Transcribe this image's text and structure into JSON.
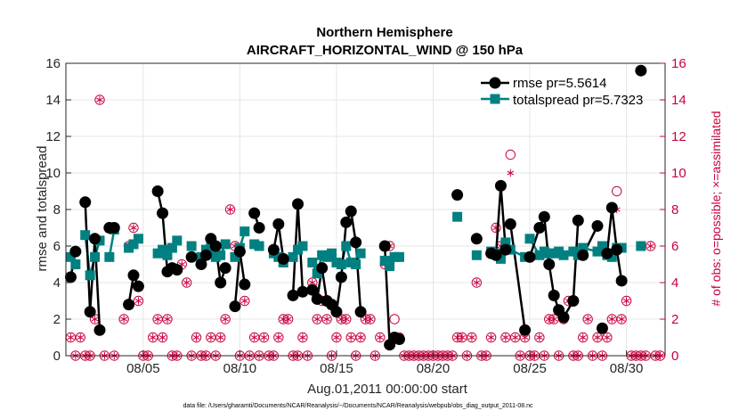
{
  "chart_data": {
    "type": "line",
    "title": "Northern Hemisphere",
    "subtitle": "AIRCRAFT_HORIZONTAL_WIND @ 150 hPa",
    "xlabel": "Aug.01,2011 00:00:00 start",
    "ylabel": "rmse and totalspread",
    "ylabel_right": "# of obs: o=possible; ×=assimilated",
    "footnote": "data file: /Users/gharamti/Documents/NCAR/Reanalysis/~/Documents/NCAR/Reanalysis/webpub/obs_diag_output_2011-08.nc",
    "xlim": [
      1,
      32
    ],
    "ylim": [
      0,
      16
    ],
    "ylim_right": [
      0,
      16
    ],
    "yticks": [
      0,
      2,
      4,
      6,
      8,
      10,
      12,
      14,
      16
    ],
    "xticks": [
      {
        "value": 5,
        "label": "08/05"
      },
      {
        "value": 10,
        "label": "08/10"
      },
      {
        "value": 15,
        "label": "08/15"
      },
      {
        "value": 20,
        "label": "08/20"
      },
      {
        "value": 25,
        "label": "08/25"
      },
      {
        "value": 30,
        "label": "08/30"
      }
    ],
    "grid": true,
    "legend_position": "top-right",
    "series": [
      {
        "name": "rmse",
        "legend": "rmse pr=5.5614",
        "color": "#000000",
        "marker": "circle",
        "x": [
          1.25,
          1.5,
          2.0,
          2.25,
          2.5,
          2.75,
          3.25,
          3.5,
          4.25,
          4.5,
          4.75,
          5.75,
          6.0,
          6.25,
          6.5,
          6.75,
          7.5,
          8.0,
          8.25,
          8.5,
          8.75,
          9.0,
          9.25,
          9.75,
          10.0,
          10.25,
          10.75,
          11.0,
          11.75,
          12.0,
          12.25,
          12.75,
          13.0,
          13.25,
          13.75,
          14.0,
          14.25,
          14.5,
          14.75,
          15.0,
          15.25,
          15.5,
          15.75,
          16.0,
          16.25,
          17.5,
          17.75,
          18.0,
          18.25,
          21.25,
          22.25,
          23.0,
          23.25,
          23.5,
          23.75,
          24.0,
          24.75,
          25.0,
          25.5,
          25.75,
          26.0,
          26.25,
          26.5,
          26.75,
          27.25,
          27.5,
          27.75,
          28.5,
          28.75,
          29.0,
          29.25,
          29.5,
          29.75,
          30.75
        ],
        "values": [
          4.3,
          5.7,
          8.4,
          2.4,
          6.4,
          1.4,
          7.0,
          7.0,
          2.8,
          4.4,
          3.8,
          9.0,
          7.8,
          4.6,
          4.8,
          4.7,
          5.4,
          5.0,
          5.5,
          6.4,
          6.0,
          4.0,
          4.8,
          2.7,
          5.7,
          3.9,
          7.8,
          7.0,
          5.8,
          7.2,
          5.3,
          3.3,
          8.3,
          3.5,
          3.6,
          3.1,
          4.8,
          3.0,
          2.8,
          2.4,
          4.3,
          7.3,
          7.9,
          6.2,
          2.4,
          6.0,
          0.6,
          1.0,
          0.9,
          8.8,
          6.4,
          5.6,
          5.5,
          9.3,
          5.8,
          7.2,
          1.4,
          5.4,
          7.0,
          7.6,
          5.0,
          3.3,
          2.5,
          2.1,
          3.0,
          7.4,
          5.5,
          7.1,
          1.5,
          5.6,
          8.1,
          5.8,
          4.1,
          15.6
        ],
        "segments": [
          [
            0,
            1
          ],
          [
            2,
            5
          ],
          [
            6,
            7
          ],
          [
            8,
            10
          ],
          [
            11,
            15
          ],
          [
            17,
            22
          ],
          [
            23,
            25
          ],
          [
            26,
            27
          ],
          [
            28,
            30
          ],
          [
            31,
            33
          ],
          [
            34,
            37
          ],
          [
            38,
            44
          ],
          [
            45,
            48
          ],
          [
            52,
            54
          ],
          [
            55,
            56
          ],
          [
            57,
            62
          ],
          [
            63,
            65
          ],
          [
            66,
            67
          ],
          [
            69,
            72
          ],
          [
            73,
            73
          ]
        ]
      },
      {
        "name": "totalspread",
        "legend": "totalspread pr=5.7323",
        "color": "#008080",
        "marker": "square",
        "x": [
          1.25,
          1.5,
          2.0,
          2.25,
          2.5,
          2.75,
          3.25,
          3.5,
          4.25,
          4.5,
          4.75,
          5.75,
          6.0,
          6.25,
          6.5,
          6.75,
          7.5,
          8.0,
          8.25,
          8.5,
          8.75,
          9.0,
          9.25,
          9.75,
          10.0,
          10.25,
          10.75,
          11.0,
          11.75,
          12.0,
          12.25,
          12.75,
          13.0,
          13.25,
          13.75,
          14.0,
          14.25,
          14.5,
          14.75,
          15.0,
          15.25,
          15.5,
          15.75,
          16.0,
          16.25,
          17.5,
          17.75,
          18.0,
          18.25,
          21.25,
          22.25,
          23.0,
          23.25,
          23.5,
          23.75,
          24.0,
          24.75,
          25.0,
          25.5,
          25.75,
          26.0,
          26.25,
          26.5,
          26.75,
          27.25,
          27.5,
          27.75,
          28.5,
          28.75,
          29.0,
          29.25,
          29.5,
          29.75,
          30.75
        ],
        "values": [
          5.4,
          5.0,
          6.6,
          4.4,
          5.4,
          6.3,
          5.4,
          6.9,
          5.9,
          6.1,
          6.4,
          5.6,
          5.8,
          5.5,
          5.9,
          6.3,
          6.0,
          5.4,
          5.8,
          5.9,
          5.4,
          5.5,
          6.1,
          5.4,
          5.9,
          6.8,
          6.1,
          6.0,
          5.6,
          5.4,
          5.1,
          5.4,
          5.8,
          6.0,
          5.1,
          4.5,
          5.5,
          5.4,
          5.6,
          5.1,
          5.0,
          6.0,
          5.1,
          5.0,
          5.6,
          5.2,
          4.9,
          5.4,
          5.4,
          7.6,
          5.5,
          5.7,
          5.6,
          5.3,
          6.2,
          5.8,
          5.4,
          6.4,
          5.5,
          5.7,
          5.6,
          5.6,
          5.7,
          5.5,
          5.7,
          5.5,
          5.9,
          5.7,
          6.0,
          5.5,
          5.4,
          5.9,
          5.9,
          6.0
        ]
      },
      {
        "name": "obs possible",
        "color": "#c8003c",
        "marker": "open-circle",
        "axis": "right",
        "x": [
          1.25,
          1.5,
          1.75,
          2.0,
          2.25,
          2.5,
          2.75,
          3.0,
          3.25,
          3.5,
          4.0,
          4.25,
          4.5,
          4.75,
          5.0,
          5.25,
          5.5,
          5.75,
          6.0,
          6.25,
          6.5,
          6.75,
          7.0,
          7.25,
          7.5,
          7.75,
          8.0,
          8.25,
          8.5,
          8.75,
          9.0,
          9.25,
          9.5,
          9.75,
          10.0,
          10.25,
          10.5,
          10.75,
          11.0,
          11.25,
          11.5,
          11.75,
          12.0,
          12.25,
          12.5,
          12.75,
          13.0,
          13.25,
          13.5,
          13.75,
          14.0,
          14.25,
          14.5,
          14.75,
          15.0,
          15.25,
          15.5,
          15.75,
          16.0,
          16.25,
          16.5,
          16.75,
          17.0,
          17.25,
          17.5,
          17.75,
          18.0,
          18.25,
          18.5,
          18.75,
          19.0,
          19.25,
          19.5,
          19.75,
          20.0,
          20.25,
          20.5,
          20.75,
          21.0,
          21.25,
          21.5,
          21.75,
          22.0,
          22.25,
          22.5,
          22.75,
          23.0,
          23.25,
          23.5,
          23.75,
          24.0,
          24.25,
          24.5,
          24.75,
          25.0,
          25.25,
          25.5,
          25.75,
          26.0,
          26.25,
          26.5,
          26.75,
          27.0,
          27.25,
          27.5,
          27.75,
          28.0,
          28.25,
          28.5,
          28.75,
          29.0,
          29.25,
          29.5,
          29.75,
          30.0,
          30.25,
          30.5,
          30.75,
          31.0,
          31.25,
          31.5,
          31.75
        ],
        "values": [
          1,
          0,
          1,
          0,
          0,
          2,
          14,
          0,
          7,
          0,
          2,
          6,
          7,
          3,
          0,
          0,
          1,
          2,
          1,
          2,
          0,
          0,
          5,
          4,
          0,
          1,
          0,
          0,
          1,
          0,
          1,
          2,
          8,
          6,
          0,
          3,
          0,
          1,
          0,
          1,
          0,
          0,
          1,
          2,
          2,
          0,
          0,
          1,
          0,
          4,
          2,
          3,
          2,
          0,
          1,
          2,
          2,
          1,
          0,
          1,
          2,
          2,
          0,
          1,
          5,
          6,
          2,
          1,
          0,
          0,
          0,
          0,
          0,
          0,
          0,
          0,
          0,
          0,
          0,
          1,
          1,
          0,
          1,
          4,
          0,
          0,
          1,
          7,
          6,
          1,
          11,
          1,
          0,
          1,
          0,
          0,
          1,
          0,
          2,
          2,
          0,
          2,
          3,
          0,
          0,
          1,
          2,
          0,
          1,
          0,
          1,
          2,
          9,
          2,
          3,
          0,
          0,
          0,
          0,
          6,
          0,
          0
        ],
        "segments": []
      },
      {
        "name": "obs assimilated",
        "color": "#c8003c",
        "marker": "asterisk",
        "axis": "right",
        "x": [
          1.25,
          1.5,
          1.75,
          2.0,
          2.25,
          2.5,
          2.75,
          3.0,
          3.25,
          3.5,
          4.0,
          4.25,
          4.5,
          4.75,
          5.0,
          5.25,
          5.5,
          5.75,
          6.0,
          6.25,
          6.5,
          6.75,
          7.0,
          7.25,
          7.5,
          7.75,
          8.0,
          8.25,
          8.5,
          8.75,
          9.0,
          9.25,
          9.5,
          9.75,
          10.0,
          10.25,
          10.5,
          10.75,
          11.0,
          11.25,
          11.5,
          11.75,
          12.0,
          12.25,
          12.5,
          12.75,
          13.0,
          13.25,
          13.5,
          13.75,
          14.0,
          14.25,
          14.5,
          14.75,
          15.0,
          15.25,
          15.5,
          15.75,
          16.0,
          16.25,
          16.5,
          16.75,
          17.0,
          17.25,
          17.5,
          17.75,
          18.0,
          18.25,
          18.5,
          18.75,
          19.0,
          19.25,
          19.5,
          19.75,
          20.0,
          20.25,
          20.5,
          20.75,
          21.0,
          21.25,
          21.5,
          21.75,
          22.0,
          22.25,
          22.5,
          22.75,
          23.0,
          23.25,
          23.5,
          23.75,
          24.0,
          24.25,
          24.5,
          24.75,
          25.0,
          25.25,
          25.5,
          25.75,
          26.0,
          26.25,
          26.5,
          26.75,
          27.0,
          27.25,
          27.5,
          27.75,
          28.0,
          28.25,
          28.5,
          28.75,
          29.0,
          29.25,
          29.5,
          29.75,
          30.0,
          30.25,
          30.5,
          30.75,
          31.0,
          31.25,
          31.5,
          31.75
        ],
        "values": [
          1,
          0,
          1,
          0,
          0,
          2,
          14,
          0,
          7,
          0,
          2,
          6,
          7,
          3,
          0,
          0,
          1,
          2,
          1,
          2,
          0,
          0,
          5,
          4,
          0,
          1,
          0,
          0,
          1,
          0,
          1,
          2,
          8,
          6,
          0,
          3,
          0,
          1,
          0,
          1,
          0,
          0,
          1,
          2,
          2,
          0,
          0,
          1,
          0,
          4,
          2,
          3,
          2,
          0,
          1,
          2,
          2,
          1,
          0,
          1,
          2,
          2,
          0,
          1,
          5,
          6,
          1,
          1,
          0,
          0,
          0,
          0,
          0,
          0,
          0,
          0,
          0,
          0,
          0,
          1,
          1,
          0,
          1,
          4,
          0,
          0,
          1,
          7,
          6,
          1,
          10,
          1,
          0,
          1,
          0,
          0,
          1,
          0,
          2,
          2,
          0,
          2,
          3,
          0,
          0,
          1,
          2,
          0,
          1,
          0,
          1,
          2,
          8,
          2,
          3,
          0,
          0,
          0,
          0,
          6,
          0,
          0
        ]
      }
    ]
  }
}
